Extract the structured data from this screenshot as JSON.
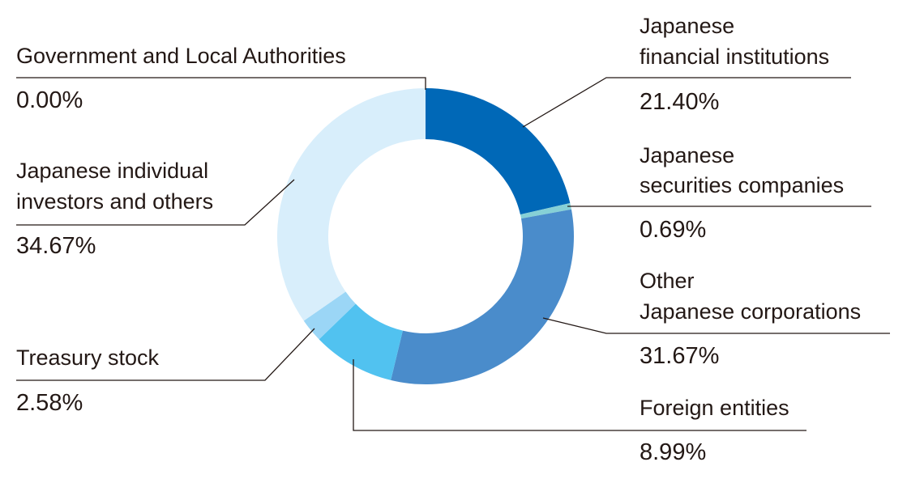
{
  "chart_data": {
    "type": "pie",
    "donut": true,
    "unit": "%",
    "slices": [
      {
        "label": "Japanese financial institutions",
        "label_lines": [
          "Japanese",
          "financial institutions"
        ],
        "value": 21.4,
        "value_label": "21.40%",
        "color": "#0068b7"
      },
      {
        "label": "Japanese securities companies",
        "label_lines": [
          "Japanese",
          "securities companies"
        ],
        "value": 0.69,
        "value_label": "0.69%",
        "color": "#86d0d6"
      },
      {
        "label": "Other Japanese corporations",
        "label_lines": [
          "Other",
          "Japanese corporations"
        ],
        "value": 31.67,
        "value_label": "31.67%",
        "color": "#4a8ccb"
      },
      {
        "label": "Foreign entities",
        "label_lines": [
          "Foreign entities"
        ],
        "value": 8.99,
        "value_label": "8.99%",
        "color": "#51c2f0"
      },
      {
        "label": "Treasury stock",
        "label_lines": [
          "Treasury stock"
        ],
        "value": 2.58,
        "value_label": "2.58%",
        "color": "#9bd6f6"
      },
      {
        "label": "Japanese individual investors and others",
        "label_lines": [
          "Japanese individual",
          "investors and others"
        ],
        "value": 34.67,
        "value_label": "34.67%",
        "color": "#d8eefb"
      },
      {
        "label": "Government and Local Authorities",
        "label_lines": [
          "Government and Local Authorities"
        ],
        "value": 0.0,
        "value_label": "0.00%",
        "color": "#d8eefb"
      }
    ],
    "legend": "none"
  }
}
